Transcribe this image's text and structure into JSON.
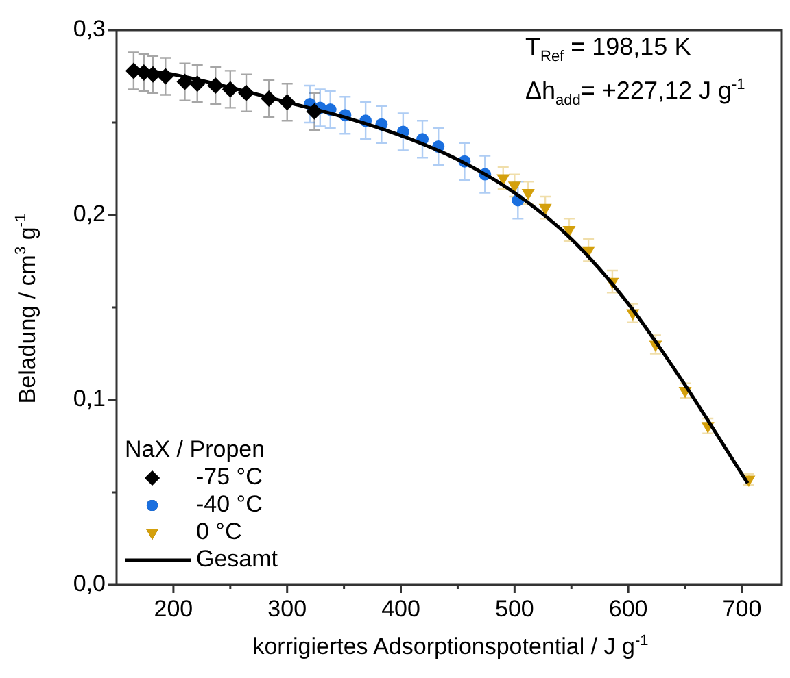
{
  "chart_data": {
    "type": "scatter",
    "xlabel": "korrigiertes Adsorptionspotential / J g$^{-1}$",
    "ylabel": "Beladung / cm$^{3}$ g$^{-1}$",
    "legend_title": "NaX / Propen",
    "annotations": [
      "T$_{Ref}$  = 198,15 K",
      "Δh$_{add}$= +227,12 J g$^{-1}$"
    ],
    "xlim": [
      150,
      735
    ],
    "xticks": [
      200,
      {
        "value": 250,
        "label": null
      },
      300,
      {
        "value": 350,
        "label": null
      },
      400,
      {
        "value": 450,
        "label": null
      },
      500,
      {
        "value": 550,
        "label": null
      },
      600,
      {
        "value": 650,
        "label": null
      },
      700
    ],
    "ylim": [
      0,
      0.3
    ],
    "yticks": [
      {
        "value": 0,
        "label": "0,0"
      },
      {
        "value": 0.05,
        "label": null
      },
      {
        "value": 0.1,
        "label": "0,1"
      },
      {
        "value": 0.15,
        "label": null
      },
      {
        "value": 0.2,
        "label": "0,2"
      },
      {
        "value": 0.25,
        "label": null
      },
      {
        "value": 0.3,
        "label": "0,3"
      }
    ],
    "grid": false,
    "legend": "bottom left",
    "series": [
      {
        "name": "-75 °C",
        "marker": "diamond",
        "color": "#000000",
        "x": [
          165,
          174,
          182,
          193,
          210,
          221,
          237,
          250,
          264,
          284,
          300,
          324
        ],
        "values": [
          0.278,
          0.277,
          0.276,
          0.275,
          0.272,
          0.271,
          0.27,
          0.268,
          0.266,
          0.263,
          0.261,
          0.256
        ],
        "errors": [
          0.01,
          0.01,
          0.01,
          0.01,
          0.01,
          0.01,
          0.01,
          0.01,
          0.01,
          0.01,
          0.01,
          0.01
        ]
      },
      {
        "name": "-40 °C",
        "marker": "circle",
        "color": "#1a6fdf",
        "x": [
          320,
          329,
          338,
          351,
          369,
          383,
          402,
          419,
          433,
          456,
          474,
          503
        ],
        "values": [
          0.26,
          0.258,
          0.257,
          0.254,
          0.251,
          0.249,
          0.245,
          0.241,
          0.237,
          0.229,
          0.222,
          0.208
        ],
        "errors": [
          0.01,
          0.01,
          0.01,
          0.01,
          0.01,
          0.01,
          0.01,
          0.01,
          0.01,
          0.01,
          0.01,
          0.01
        ]
      },
      {
        "name": "0 °C",
        "marker": "triangle",
        "color": "#d4a00c",
        "x": [
          490,
          500,
          512,
          527,
          548,
          565,
          586,
          604,
          624,
          650,
          670,
          706
        ],
        "values": [
          0.22,
          0.216,
          0.212,
          0.204,
          0.192,
          0.181,
          0.164,
          0.147,
          0.13,
          0.105,
          0.086,
          0.057
        ],
        "errors": [
          0.006,
          0.006,
          0.006,
          0.006,
          0.006,
          0.006,
          0.006,
          0.005,
          0.005,
          0.004,
          0.004,
          0.003
        ]
      },
      {
        "name": "Gesamt",
        "type": "line",
        "marker": "none",
        "line_style": "solid",
        "color": "#000000",
        "x": [
          165,
          200,
          250,
          300,
          350,
          400,
          450,
          500,
          550,
          600,
          650,
          705
        ],
        "values": [
          0.279,
          0.276,
          0.269,
          0.261,
          0.253,
          0.243,
          0.23,
          0.212,
          0.187,
          0.152,
          0.108,
          0.055
        ]
      }
    ]
  }
}
